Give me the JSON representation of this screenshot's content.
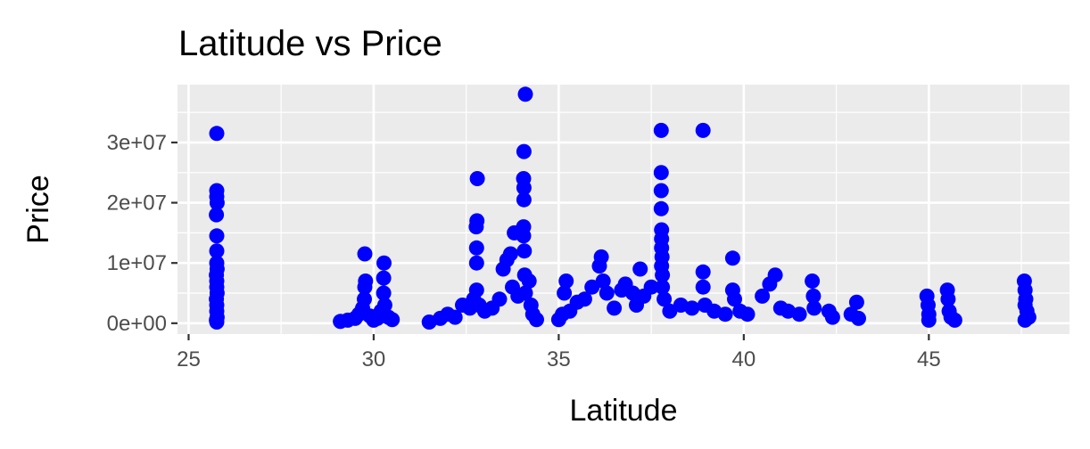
{
  "chart_data": {
    "type": "scatter",
    "title": "Latitude vs Price",
    "xlabel": "Latitude",
    "ylabel": "Price",
    "xlim": [
      24.7,
      48.8
    ],
    "ylim": [
      -1800000,
      39600000
    ],
    "x_ticks": [
      25,
      30,
      35,
      40,
      45
    ],
    "x_tick_labels": [
      "25",
      "30",
      "35",
      "40",
      "45"
    ],
    "y_ticks": [
      0,
      10000000,
      20000000,
      30000000
    ],
    "y_tick_labels": [
      "0e+00",
      "1e+07",
      "2e+07",
      "3e+07"
    ],
    "grid": true,
    "legend": "none",
    "point_color": "#0000ff",
    "panel_color": "#ebebeb",
    "grid_color": "#ffffff",
    "points": [
      [
        25.76,
        31500000
      ],
      [
        25.76,
        22000000
      ],
      [
        25.76,
        21000000
      ],
      [
        25.77,
        20000000
      ],
      [
        25.75,
        18000000
      ],
      [
        25.76,
        14500000
      ],
      [
        25.76,
        12000000
      ],
      [
        25.76,
        10000000
      ],
      [
        25.77,
        9000000
      ],
      [
        25.75,
        8000000
      ],
      [
        25.76,
        7000000
      ],
      [
        25.76,
        6000000
      ],
      [
        25.77,
        5000000
      ],
      [
        25.75,
        4000000
      ],
      [
        25.76,
        3000000
      ],
      [
        25.76,
        2000000
      ],
      [
        25.77,
        1000000
      ],
      [
        25.75,
        500000
      ],
      [
        25.76,
        200000
      ],
      [
        29.1,
        300000
      ],
      [
        29.3,
        500000
      ],
      [
        29.5,
        800000
      ],
      [
        29.6,
        1500000
      ],
      [
        29.7,
        2500000
      ],
      [
        29.75,
        4000000
      ],
      [
        29.76,
        6000000
      ],
      [
        29.78,
        7000000
      ],
      [
        29.76,
        11500000
      ],
      [
        29.9,
        1200000
      ],
      [
        30.0,
        500000
      ],
      [
        30.1,
        800000
      ],
      [
        30.2,
        2000000
      ],
      [
        30.27,
        5000000
      ],
      [
        30.27,
        7500000
      ],
      [
        30.28,
        10000000
      ],
      [
        30.3,
        3000000
      ],
      [
        30.4,
        1000000
      ],
      [
        30.5,
        600000
      ],
      [
        31.5,
        200000
      ],
      [
        31.8,
        800000
      ],
      [
        32.0,
        1500000
      ],
      [
        32.2,
        1000000
      ],
      [
        32.4,
        3000000
      ],
      [
        32.6,
        2500000
      ],
      [
        32.7,
        4000000
      ],
      [
        32.78,
        5500000
      ],
      [
        32.78,
        10000000
      ],
      [
        32.78,
        12500000
      ],
      [
        32.77,
        16000000
      ],
      [
        32.79,
        17000000
      ],
      [
        32.8,
        24000000
      ],
      [
        32.85,
        3000000
      ],
      [
        33.0,
        2000000
      ],
      [
        33.2,
        2500000
      ],
      [
        33.4,
        4000000
      ],
      [
        33.5,
        9000000
      ],
      [
        33.6,
        10500000
      ],
      [
        33.7,
        11500000
      ],
      [
        33.75,
        6000000
      ],
      [
        33.8,
        15000000
      ],
      [
        33.9,
        4500000
      ],
      [
        34.05,
        14500000
      ],
      [
        34.05,
        16000000
      ],
      [
        34.06,
        20500000
      ],
      [
        34.06,
        22500000
      ],
      [
        34.05,
        24000000
      ],
      [
        34.06,
        28500000
      ],
      [
        34.1,
        38000000
      ],
      [
        34.07,
        12000000
      ],
      [
        34.08,
        8000000
      ],
      [
        34.1,
        5000000
      ],
      [
        34.2,
        7000000
      ],
      [
        34.25,
        3000000
      ],
      [
        34.3,
        1500000
      ],
      [
        34.4,
        600000
      ],
      [
        35.0,
        600000
      ],
      [
        35.1,
        1500000
      ],
      [
        35.15,
        5000000
      ],
      [
        35.2,
        7000000
      ],
      [
        35.3,
        2000000
      ],
      [
        35.5,
        3500000
      ],
      [
        35.7,
        4000000
      ],
      [
        35.9,
        6000000
      ],
      [
        36.1,
        9500000
      ],
      [
        36.15,
        11000000
      ],
      [
        36.2,
        7000000
      ],
      [
        36.3,
        5000000
      ],
      [
        36.5,
        2500000
      ],
      [
        36.7,
        5500000
      ],
      [
        36.8,
        6500000
      ],
      [
        37.0,
        5000000
      ],
      [
        37.1,
        3000000
      ],
      [
        37.2,
        9000000
      ],
      [
        37.3,
        4500000
      ],
      [
        37.5,
        6000000
      ],
      [
        37.77,
        32000000
      ],
      [
        37.77,
        25000000
      ],
      [
        37.77,
        22000000
      ],
      [
        37.77,
        19000000
      ],
      [
        37.78,
        15500000
      ],
      [
        37.78,
        14000000
      ],
      [
        37.78,
        12500000
      ],
      [
        37.79,
        11000000
      ],
      [
        37.78,
        9500000
      ],
      [
        37.8,
        8000000
      ],
      [
        37.8,
        6000000
      ],
      [
        37.85,
        4000000
      ],
      [
        38.0,
        2000000
      ],
      [
        38.3,
        3000000
      ],
      [
        38.6,
        2500000
      ],
      [
        38.9,
        32000000
      ],
      [
        38.9,
        8500000
      ],
      [
        38.9,
        6000000
      ],
      [
        38.95,
        3000000
      ],
      [
        39.2,
        2000000
      ],
      [
        39.5,
        1500000
      ],
      [
        39.7,
        10800000
      ],
      [
        39.7,
        5500000
      ],
      [
        39.75,
        4000000
      ],
      [
        39.9,
        2000000
      ],
      [
        40.1,
        1500000
      ],
      [
        40.5,
        4500000
      ],
      [
        40.7,
        6500000
      ],
      [
        40.85,
        8000000
      ],
      [
        41.0,
        2500000
      ],
      [
        41.2,
        2000000
      ],
      [
        41.5,
        1500000
      ],
      [
        41.85,
        7000000
      ],
      [
        41.88,
        4500000
      ],
      [
        41.9,
        2500000
      ],
      [
        42.3,
        2000000
      ],
      [
        42.4,
        1000000
      ],
      [
        42.9,
        1500000
      ],
      [
        43.05,
        3500000
      ],
      [
        43.1,
        800000
      ],
      [
        44.95,
        4500000
      ],
      [
        44.98,
        3000000
      ],
      [
        45.0,
        1500000
      ],
      [
        45.0,
        500000
      ],
      [
        45.5,
        5500000
      ],
      [
        45.52,
        4000000
      ],
      [
        45.55,
        2000000
      ],
      [
        45.6,
        1000000
      ],
      [
        45.7,
        500000
      ],
      [
        47.58,
        7000000
      ],
      [
        47.6,
        5500000
      ],
      [
        47.62,
        4000000
      ],
      [
        47.6,
        3000000
      ],
      [
        47.65,
        2000000
      ],
      [
        47.7,
        1000000
      ],
      [
        47.6,
        500000
      ]
    ]
  }
}
